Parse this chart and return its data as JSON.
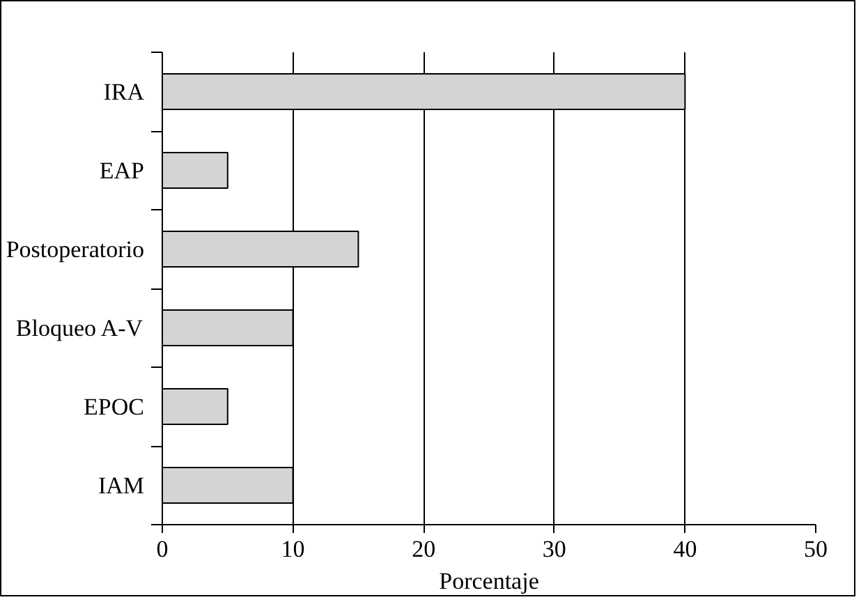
{
  "chart_data": {
    "type": "bar",
    "orientation": "horizontal",
    "categories": [
      "IRA",
      "EAP",
      "Postoperatorio",
      "Bloqueo A-V",
      "EPOC",
      "IAM"
    ],
    "values": [
      40,
      5,
      15,
      10,
      5,
      10
    ],
    "color": "#d4d4d4",
    "xlabel": "Porcentaje",
    "xlim": [
      0,
      50
    ],
    "xticks": [
      0,
      10,
      20,
      30,
      40,
      50
    ],
    "grid": "x"
  }
}
